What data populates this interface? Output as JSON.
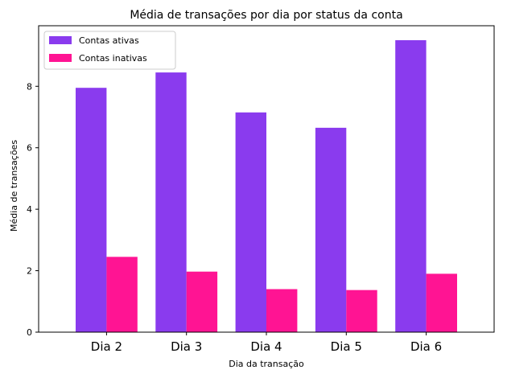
{
  "chart_data": {
    "type": "bar",
    "title": "Média de transações por dia por status da conta",
    "xlabel": "Dia da transação",
    "ylabel": "Média de transações",
    "categories": [
      "Dia 2",
      "Dia 3",
      "Dia 4",
      "Dia 5",
      "Dia 6"
    ],
    "series": [
      {
        "name": "Contas ativas",
        "color": "#8A3BEE",
        "values": [
          7.95,
          8.45,
          7.15,
          6.65,
          9.5
        ]
      },
      {
        "name": "Contas inativas",
        "color": "#FF1493",
        "values": [
          2.45,
          1.97,
          1.4,
          1.37,
          1.9
        ]
      }
    ],
    "ylim": [
      0,
      9.97
    ],
    "yticks": [
      0,
      2,
      4,
      6,
      8
    ],
    "grid": false,
    "legend_position": "top-left"
  }
}
